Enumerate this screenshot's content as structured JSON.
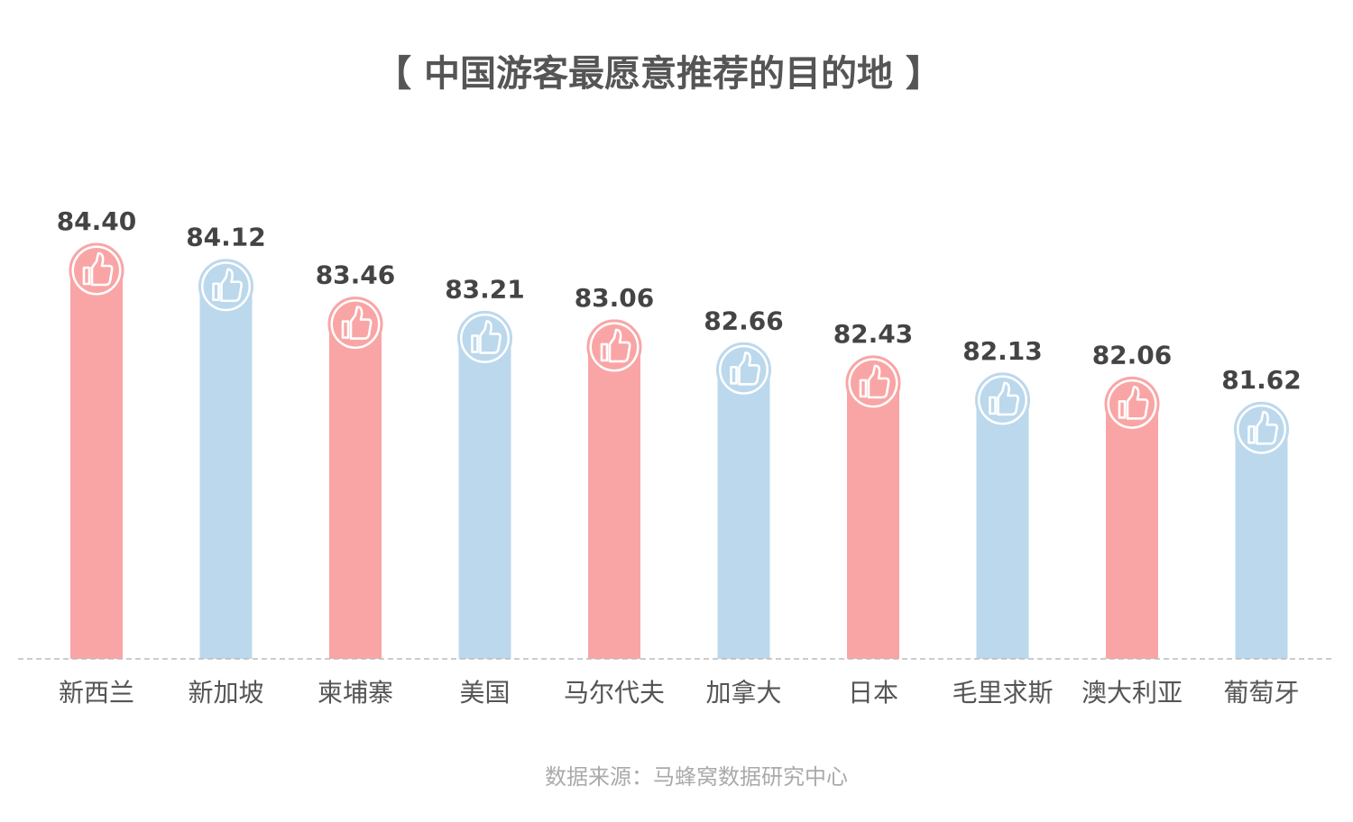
{
  "chart_data": {
    "type": "bar",
    "title": "【 中国游客最愿意推荐的目的地 】",
    "categories": [
      "新西兰",
      "新加坡",
      "柬埔寨",
      "美国",
      "马尔代夫",
      "加拿大",
      "日本",
      "毛里求斯",
      "澳大利亚",
      "葡萄牙"
    ],
    "values": [
      84.4,
      84.12,
      83.46,
      83.21,
      83.06,
      82.66,
      82.43,
      82.13,
      82.06,
      81.62
    ],
    "value_labels": [
      "84.40",
      "84.12",
      "83.46",
      "83.21",
      "83.06",
      "82.66",
      "82.43",
      "82.13",
      "82.06",
      "81.62"
    ],
    "ylim": [
      77.6,
      84.4
    ],
    "grid": false,
    "bar_icon": "thumbs-up-icon",
    "colors": {
      "pink": "#f9a5a6",
      "blue": "#bcd8ec",
      "baseline": "#bbbbbb"
    },
    "color_pattern": [
      "pink",
      "blue"
    ]
  },
  "footer": {
    "source": "数据来源：马蜂窝数据研究中心"
  }
}
